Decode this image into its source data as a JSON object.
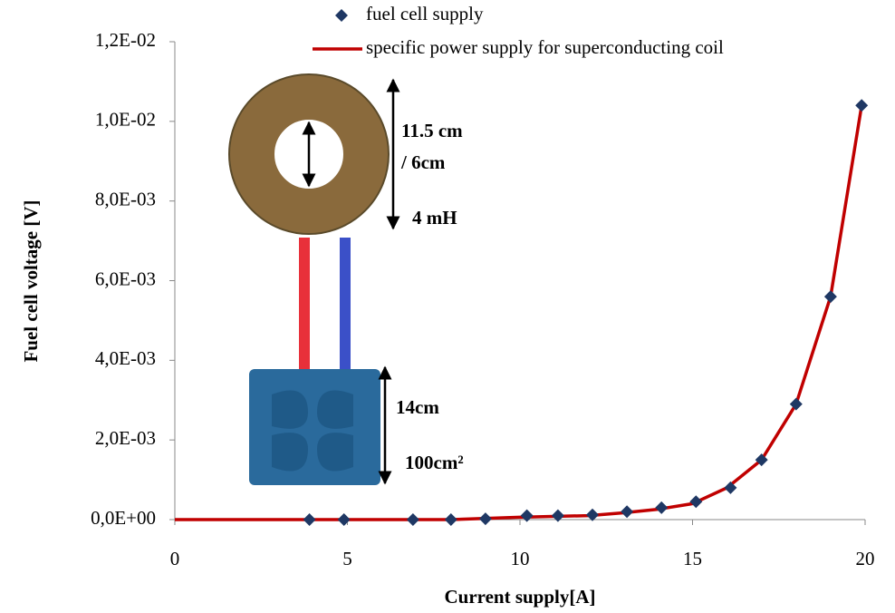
{
  "chart_data": {
    "type": "scatter",
    "xlabel": "Current supply[A]",
    "ylabel": "Fuel cell voltage [V]",
    "xlim": [
      0,
      20
    ],
    "xticks": [
      0,
      5,
      10,
      15,
      20
    ],
    "ylim": [
      0,
      0.012
    ],
    "yticks": [
      {
        "value": 0,
        "label": "0,0E+00"
      },
      {
        "value": 0.002,
        "label": "2,0E-03"
      },
      {
        "value": 0.004,
        "label": "4,0E-03"
      },
      {
        "value": 0.006,
        "label": "6,0E-03"
      },
      {
        "value": 0.008,
        "label": "8,0E-03"
      },
      {
        "value": 0.01,
        "label": "1,0E-02"
      },
      {
        "value": 0.012,
        "label": "1,2E-02"
      }
    ],
    "series": [
      {
        "name": "fuel cell supply",
        "type": "scatter",
        "color": "#1f3864",
        "x": [
          3.9,
          4.9,
          6.9,
          8.0,
          9.0,
          10.2,
          11.1,
          12.1,
          13.1,
          14.1,
          15.1,
          16.1,
          17.0,
          18.0,
          19.0,
          19.9
        ],
        "values": [
          0,
          0,
          0,
          0,
          2e-05,
          0.0001,
          0.0001,
          0.00012,
          0.0002,
          0.0003,
          0.00045,
          0.0008,
          0.0015,
          0.0029,
          0.0056,
          0.0104
        ]
      },
      {
        "name": "specific power supply for superconducting coil",
        "type": "line",
        "color": "#c00000",
        "x": [
          0,
          4,
          8,
          10,
          12,
          13,
          14,
          15,
          16,
          17,
          18,
          19,
          19.9
        ],
        "values": [
          0,
          0,
          0,
          6e-05,
          0.0001,
          0.00017,
          0.00026,
          0.0004,
          0.0008,
          0.0015,
          0.0029,
          0.0056,
          0.0104
        ]
      }
    ],
    "annotations": [
      "11.5 cm",
      "/ 6cm",
      "4 mH",
      "14cm",
      "100cm²"
    ]
  }
}
